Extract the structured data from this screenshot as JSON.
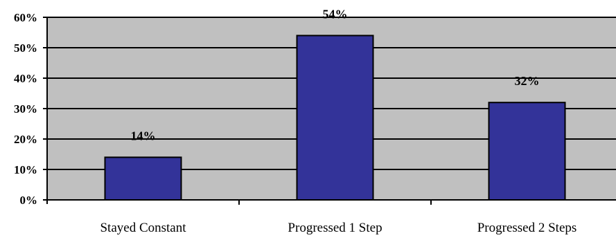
{
  "chart_data": {
    "type": "bar",
    "title": "",
    "xlabel": "",
    "ylabel": "",
    "categories": [
      "Stayed Constant",
      "Progressed 1 Step",
      "Progressed 2 Steps"
    ],
    "values": [
      14,
      54,
      32
    ],
    "data_labels": [
      "14%",
      "54%",
      "32%"
    ],
    "ylim": [
      0,
      60
    ],
    "yticks": [
      0,
      10,
      20,
      30,
      40,
      50,
      60
    ],
    "ytick_labels": [
      "0%",
      "10%",
      "20%",
      "30%",
      "40%",
      "50%",
      "60%"
    ],
    "grid": true,
    "legend": "none",
    "colors": {
      "bar": "#333399",
      "plot_background": "#c0c0c0",
      "gridline": "#000000"
    }
  }
}
